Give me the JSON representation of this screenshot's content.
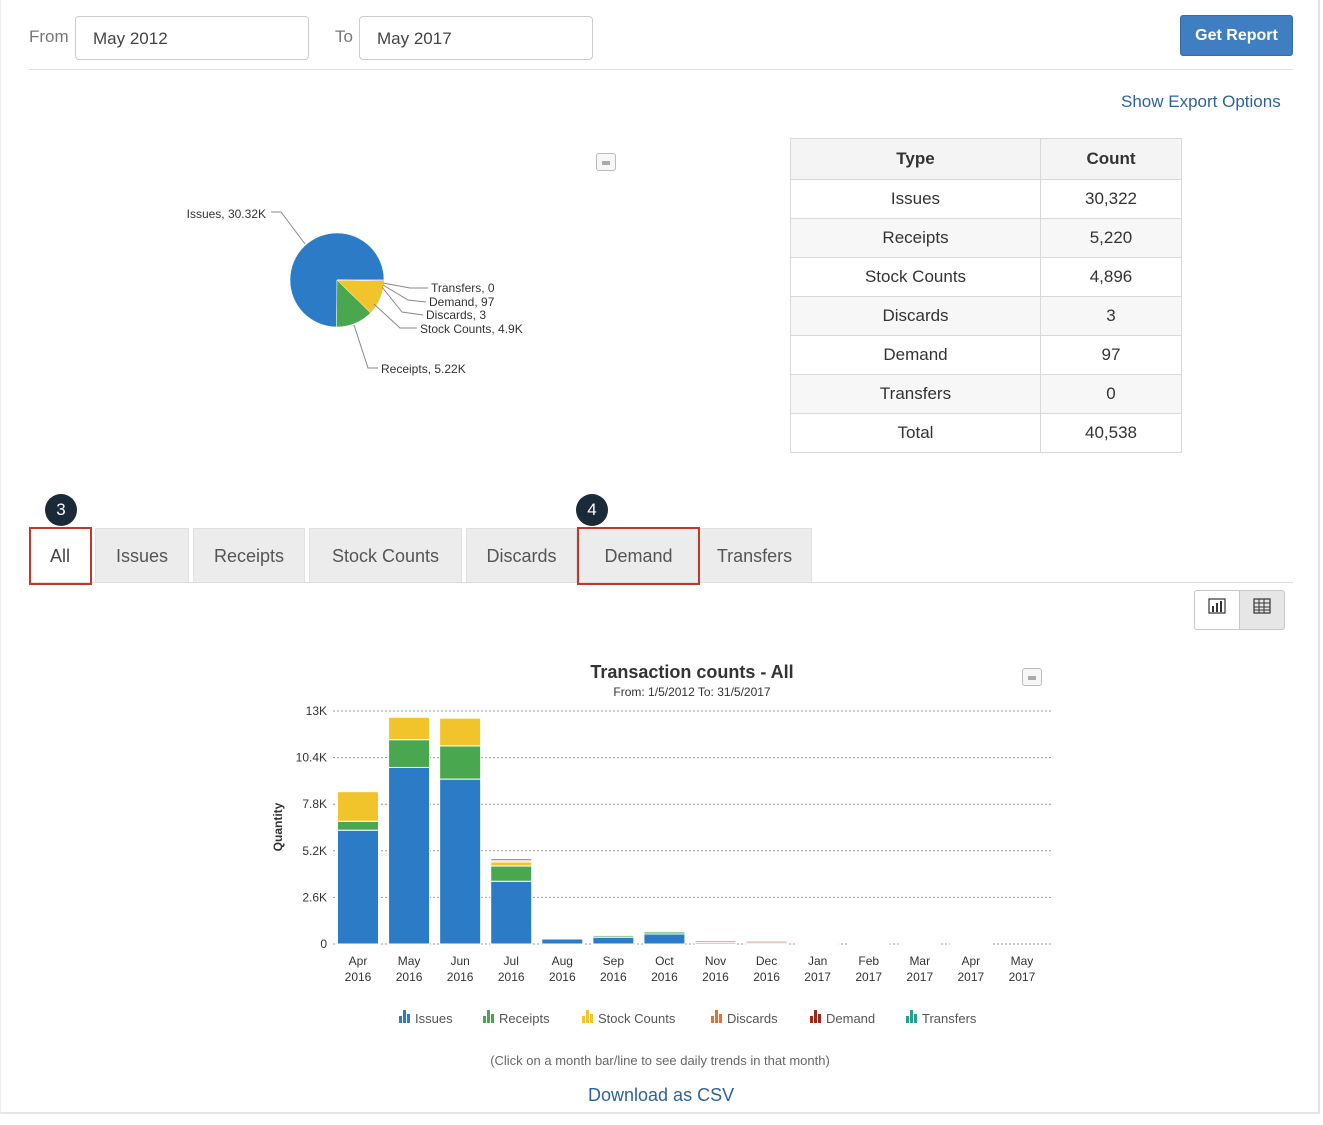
{
  "filters": {
    "from_label": "From",
    "from_value": "May 2012",
    "to_label": "To",
    "to_value": "May 2017",
    "submit_label": "Get Report"
  },
  "export_link": "Show Export Options",
  "pie": {
    "labels": [
      "Issues, 30.32K",
      "Transfers, 0",
      "Demand, 97",
      "Discards, 3",
      "Stock Counts, 4.9K",
      "Receipts, 5.22K"
    ]
  },
  "summary_table": {
    "headers": [
      "Type",
      "Count"
    ],
    "rows": [
      [
        "Issues",
        "30,322"
      ],
      [
        "Receipts",
        "5,220"
      ],
      [
        "Stock Counts",
        "4,896"
      ],
      [
        "Discards",
        "3"
      ],
      [
        "Demand",
        "97"
      ],
      [
        "Transfers",
        "0"
      ],
      [
        "Total",
        "40,538"
      ]
    ]
  },
  "tabs": [
    "All",
    "Issues",
    "Receipts",
    "Stock Counts",
    "Discards",
    "Demand",
    "Transfers"
  ],
  "callouts": [
    "3",
    "4"
  ],
  "view_toggle": {
    "chart_icon": "chart-icon",
    "table_icon": "table-icon"
  },
  "chart_data": [
    {
      "type": "pie",
      "slices": [
        {
          "name": "Issues",
          "value": 30322,
          "color": "#2b7bc6"
        },
        {
          "name": "Receipts",
          "value": 5220,
          "color": "#48a74f"
        },
        {
          "name": "Stock Counts",
          "value": 4896,
          "color": "#f2c42c"
        },
        {
          "name": "Discards",
          "value": 3,
          "color": "#e8702a"
        },
        {
          "name": "Demand",
          "value": 97,
          "color": "#9c2a1c"
        },
        {
          "name": "Transfers",
          "value": 0,
          "color": "#2a9d8f"
        }
      ]
    },
    {
      "type": "bar",
      "stacked": true,
      "title": "Transaction counts - All",
      "subtitle": "From: 1/5/2012 To: 31/5/2017",
      "ylabel": "Quantity",
      "ylim": [
        0,
        13000
      ],
      "yticks": [
        "0",
        "2.6K",
        "5.2K",
        "7.8K",
        "10.4K",
        "13K"
      ],
      "categories": [
        [
          "Apr",
          "2016"
        ],
        [
          "May",
          "2016"
        ],
        [
          "Jun",
          "2016"
        ],
        [
          "Jul",
          "2016"
        ],
        [
          "Aug",
          "2016"
        ],
        [
          "Sep",
          "2016"
        ],
        [
          "Oct",
          "2016"
        ],
        [
          "Nov",
          "2016"
        ],
        [
          "Dec",
          "2016"
        ],
        [
          "Jan",
          "2017"
        ],
        [
          "Feb",
          "2017"
        ],
        [
          "Mar",
          "2017"
        ],
        [
          "Apr",
          "2017"
        ],
        [
          "May",
          "2017"
        ]
      ],
      "series": [
        {
          "name": "Issues",
          "color": "#2b7bc6",
          "values": [
            6350,
            9850,
            9200,
            3500,
            280,
            380,
            560,
            0,
            0,
            0,
            0,
            0,
            0,
            0
          ]
        },
        {
          "name": "Receipts",
          "color": "#48a74f",
          "values": [
            500,
            1550,
            1850,
            850,
            60,
            90,
            120,
            0,
            0,
            0,
            0,
            0,
            0,
            0
          ]
        },
        {
          "name": "Stock Counts",
          "color": "#f2c42c",
          "values": [
            1650,
            1250,
            1550,
            230,
            0,
            0,
            0,
            0,
            0,
            0,
            0,
            0,
            0,
            0
          ]
        },
        {
          "name": "Discards",
          "color": "#e8702a",
          "values": [
            0,
            0,
            0,
            70,
            40,
            60,
            60,
            80,
            70,
            50,
            40,
            50,
            40,
            0
          ]
        },
        {
          "name": "Demand",
          "color": "#9c2a1c",
          "values": [
            0,
            0,
            0,
            97,
            0,
            0,
            30,
            80,
            80,
            20,
            20,
            20,
            30,
            0
          ]
        },
        {
          "name": "Transfers",
          "color": "#2a9d8f",
          "values": [
            0,
            0,
            0,
            0,
            0,
            0,
            0,
            0,
            0,
            0,
            0,
            0,
            0,
            0
          ]
        }
      ],
      "legend_position": "bottom"
    }
  ],
  "footer": {
    "hint": "(Click on a month bar/line to see daily trends in that month)",
    "download": "Download as CSV"
  }
}
